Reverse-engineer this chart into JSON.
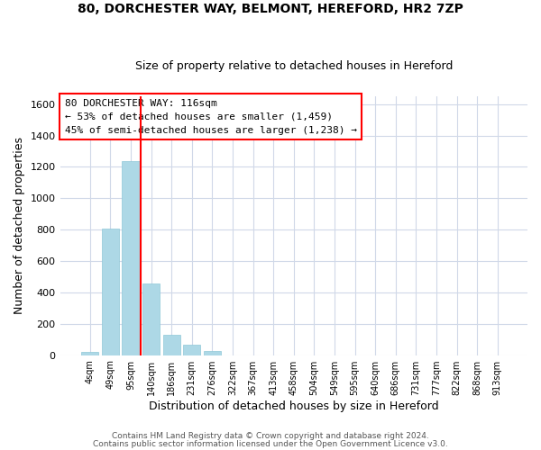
{
  "title1": "80, DORCHESTER WAY, BELMONT, HEREFORD, HR2 7ZP",
  "title2": "Size of property relative to detached houses in Hereford",
  "xlabel": "Distribution of detached houses by size in Hereford",
  "ylabel": "Number of detached properties",
  "bar_labels": [
    "4sqm",
    "49sqm",
    "95sqm",
    "140sqm",
    "186sqm",
    "231sqm",
    "276sqm",
    "322sqm",
    "367sqm",
    "413sqm",
    "458sqm",
    "504sqm",
    "549sqm",
    "595sqm",
    "640sqm",
    "686sqm",
    "731sqm",
    "777sqm",
    "822sqm",
    "868sqm",
    "913sqm"
  ],
  "bar_values": [
    20,
    805,
    1240,
    455,
    130,
    65,
    25,
    0,
    0,
    0,
    0,
    0,
    0,
    0,
    0,
    0,
    0,
    0,
    0,
    0,
    0
  ],
  "bar_color": "#add8e6",
  "bar_edge_color": "#add8e6",
  "vline_color": "red",
  "ylim": [
    0,
    1650
  ],
  "yticks": [
    0,
    200,
    400,
    600,
    800,
    1000,
    1200,
    1400,
    1600
  ],
  "annotation_title": "80 DORCHESTER WAY: 116sqm",
  "annotation_line1": "← 53% of detached houses are smaller (1,459)",
  "annotation_line2": "45% of semi-detached houses are larger (1,238) →",
  "footer1": "Contains HM Land Registry data © Crown copyright and database right 2024.",
  "footer2": "Contains public sector information licensed under the Open Government Licence v3.0.",
  "background_color": "#ffffff",
  "grid_color": "#d0d8e8"
}
